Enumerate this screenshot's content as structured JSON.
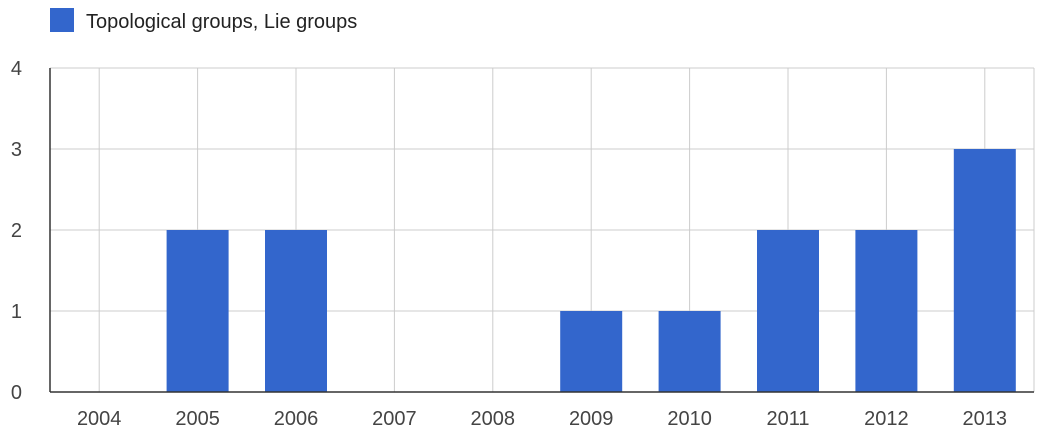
{
  "chart_data": {
    "type": "bar",
    "categories": [
      "2004",
      "2005",
      "2006",
      "2007",
      "2008",
      "2009",
      "2010",
      "2011",
      "2012",
      "2013"
    ],
    "series": [
      {
        "name": "Topological groups, Lie groups",
        "values": [
          0,
          2,
          2,
          0,
          0,
          1,
          1,
          2,
          2,
          3
        ],
        "color": "#3366cc"
      }
    ],
    "title": "",
    "xlabel": "",
    "ylabel": "",
    "ylim": [
      0,
      4
    ],
    "yticks": [
      "0",
      "1",
      "2",
      "3",
      "4"
    ],
    "grid": true,
    "legend_position": "top-left"
  }
}
